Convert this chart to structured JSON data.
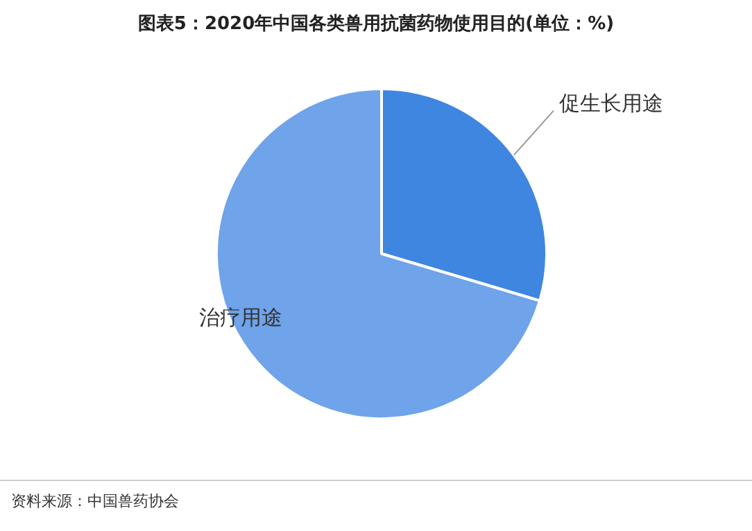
{
  "chart_data": {
    "type": "pie",
    "title": "图表5：2020年中国各类兽用抗菌药物使用目的(单位：%)",
    "categories": [
      "促生长用途",
      "治疗用途"
    ],
    "values": [
      29.6,
      70.4
    ],
    "colors": [
      "#3f86e0",
      "#6fa3ea"
    ],
    "legend": false,
    "annotations": [
      "资料来源：中国兽药协会"
    ]
  }
}
